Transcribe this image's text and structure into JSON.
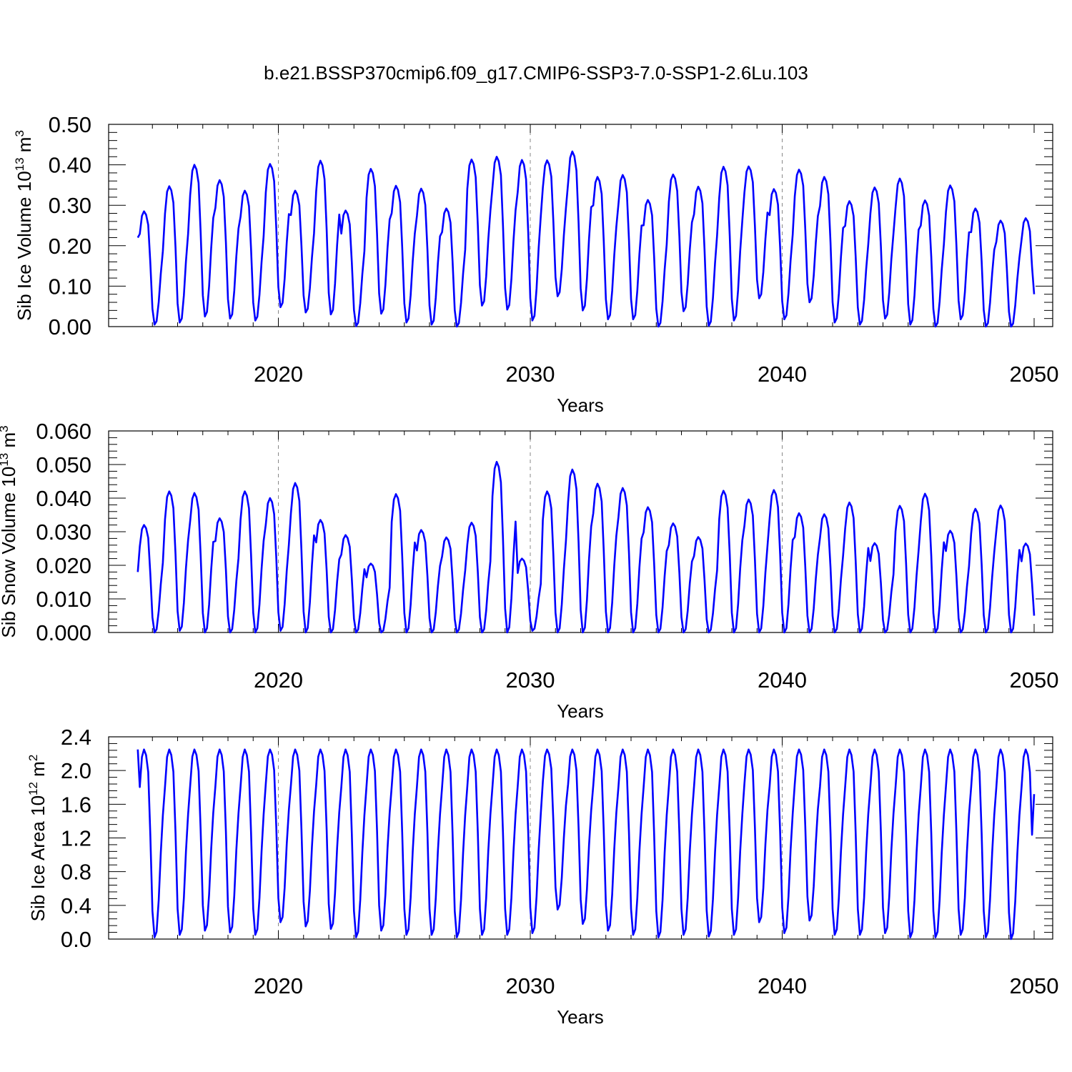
{
  "title": "b.e21.BSSP370cmip6.f09_g17.CMIP6-SSP3-7.0-SSP1-2.6Lu.103",
  "chart_data": [
    {
      "type": "line",
      "ylabel_main": "Sib Ice Volume 10",
      "ylabel_exp": "13",
      "ylabel_unit": " m",
      "ylabel_unit_exp": "3",
      "xlabel": "Years",
      "xlim": [
        2014.0,
        2050.0
      ],
      "ylim": [
        0.0,
        0.5
      ],
      "xticks": [
        2020,
        2030,
        2040,
        2050
      ],
      "yticks": [
        0.0,
        0.1,
        0.2,
        0.3,
        0.4,
        0.5
      ],
      "ytick_labels": [
        "0.00",
        "0.10",
        "0.20",
        "0.30",
        "0.40",
        "0.50"
      ],
      "grid": "dashed vertical lines at major x ticks",
      "color": "#0000ff",
      "annual_max": [
        0.285,
        0.347,
        0.4,
        0.362,
        0.336,
        0.402,
        0.336,
        0.41,
        0.287,
        0.39,
        0.348,
        0.341,
        0.292,
        0.413,
        0.42,
        0.412,
        0.411,
        0.433,
        0.37,
        0.375,
        0.313,
        0.376,
        0.346,
        0.395,
        0.396,
        0.34,
        0.388,
        0.37,
        0.31,
        0.344,
        0.366,
        0.312,
        0.349,
        0.292,
        0.262,
        0.268
      ],
      "annual_min": [
        0.005,
        0.01,
        0.025,
        0.02,
        0.015,
        0.048,
        0.035,
        0.03,
        0.001,
        0.032,
        0.01,
        0.005,
        0.0,
        0.052,
        0.042,
        0.015,
        0.075,
        0.04,
        0.018,
        0.018,
        0.0,
        0.038,
        0.002,
        0.015,
        0.07,
        0.018,
        0.06,
        0.01,
        0.005,
        0.02,
        0.005,
        0.0,
        0.018,
        0.0,
        0.0,
        0.0
      ],
      "start_value": 0.22,
      "end_value": 0.08
    },
    {
      "type": "line",
      "ylabel_main": "Sib Snow Volume 10",
      "ylabel_exp": "13",
      "ylabel_unit": " m",
      "ylabel_unit_exp": "3",
      "xlabel": "Years",
      "xlim": [
        2014.0,
        2050.0
      ],
      "ylim": [
        0.0,
        0.06
      ],
      "xticks": [
        2020,
        2030,
        2040,
        2050
      ],
      "yticks": [
        0.0,
        0.01,
        0.02,
        0.03,
        0.04,
        0.05,
        0.06
      ],
      "ytick_labels": [
        "0.000",
        "0.010",
        "0.020",
        "0.030",
        "0.040",
        "0.050",
        "0.060"
      ],
      "grid": "dashed vertical lines at major x ticks",
      "color": "#0000ff",
      "annual_max": [
        0.032,
        0.042,
        0.0415,
        0.034,
        0.042,
        0.04,
        0.0445,
        0.0335,
        0.029,
        0.0205,
        0.0412,
        0.0305,
        0.0283,
        0.0327,
        0.0508,
        0.022,
        0.042,
        0.0485,
        0.0443,
        0.043,
        0.0373,
        0.0325,
        0.0284,
        0.0422,
        0.0396,
        0.0424,
        0.0355,
        0.0352,
        0.0387,
        0.0266,
        0.0377,
        0.0413,
        0.0303,
        0.0368,
        0.0378,
        0.0265
      ],
      "annual_min": [
        0.0,
        0.0005,
        0.0,
        0.0,
        0.0,
        0.0005,
        0.0,
        0.0,
        0.0,
        0.0,
        0.0,
        0.0,
        0.0,
        0.0,
        0.0,
        0.0005,
        0.0,
        0.0,
        0.0,
        0.0,
        0.0,
        0.0,
        0.0,
        0.0,
        0.0,
        0.0,
        0.0,
        0.0,
        0.0,
        0.0,
        0.0,
        0.0,
        0.0,
        0.0,
        0.0,
        0.0
      ],
      "start_value": 0.018,
      "end_value": 0.005
    },
    {
      "type": "line",
      "ylabel_main": "Sib Ice Area 10",
      "ylabel_exp": "12",
      "ylabel_unit": " m",
      "ylabel_unit_exp": "2",
      "xlabel": "Years",
      "xlim": [
        2014.0,
        2050.0
      ],
      "ylim": [
        0.0,
        2.4
      ],
      "xticks": [
        2020,
        2030,
        2040,
        2050
      ],
      "yticks": [
        0.0,
        0.4,
        0.8,
        1.2,
        1.6,
        2.0,
        2.4
      ],
      "ytick_labels": [
        "0.0",
        "0.4",
        "0.8",
        "1.2",
        "1.6",
        "2.0",
        "2.4"
      ],
      "grid": "dashed vertical lines at major x ticks",
      "color": "#0000ff",
      "annual_max": [
        2.25,
        2.25,
        2.25,
        2.25,
        2.25,
        2.25,
        2.25,
        2.25,
        2.25,
        2.25,
        2.25,
        2.25,
        2.25,
        2.25,
        2.25,
        2.25,
        2.25,
        2.25,
        2.25,
        2.25,
        2.25,
        2.25,
        2.25,
        2.25,
        2.25,
        2.25,
        2.25,
        2.25,
        2.25,
        2.25,
        2.25,
        2.25,
        2.25,
        2.25,
        2.25,
        2.25
      ],
      "annual_min": [
        0.02,
        0.05,
        0.1,
        0.08,
        0.05,
        0.2,
        0.15,
        0.12,
        0.02,
        0.1,
        0.05,
        0.05,
        0.02,
        0.05,
        0.05,
        0.07,
        0.35,
        0.18,
        0.1,
        0.05,
        0.02,
        0.05,
        0.03,
        0.05,
        0.2,
        0.07,
        0.22,
        0.05,
        0.05,
        0.07,
        0.02,
        0.02,
        0.05,
        0.02,
        0.0,
        0.0
      ],
      "start_value": 2.25,
      "end_value": 1.72
    }
  ]
}
